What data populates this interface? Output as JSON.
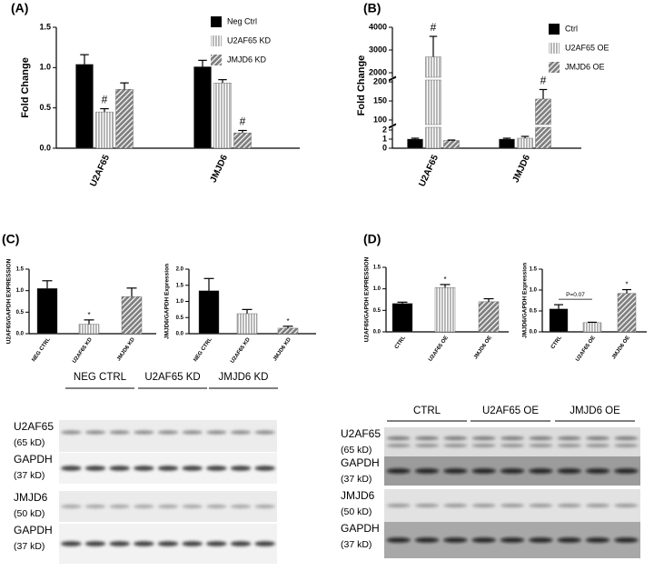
{
  "chart_data": [
    {
      "type": "bar",
      "title": "(A)",
      "y_label": "Fold Change",
      "categories": [
        "U2AF65",
        "JMJD6"
      ],
      "series": [
        {
          "name": "Neg Ctrl",
          "color": "#000000",
          "pattern": "solid",
          "values": [
            1.04,
            1.01
          ],
          "errors": [
            0.12,
            0.08
          ],
          "annotations": [
            null,
            null
          ]
        },
        {
          "name": "U2AF65 KD",
          "color": "#b0b0b0",
          "pattern": "stripes",
          "values": [
            0.45,
            0.81
          ],
          "errors": [
            0.04,
            0.04
          ],
          "annotations": [
            "#",
            null
          ]
        },
        {
          "name": "JMJD6 KD",
          "color": "#7f7f7f",
          "pattern": "hatch",
          "values": [
            0.73,
            0.19
          ],
          "errors": [
            0.08,
            0.03
          ],
          "annotations": [
            null,
            "#"
          ]
        }
      ],
      "ylim": [
        0,
        1.5
      ],
      "yticks": [
        {
          "value": 0,
          "label": "0.0"
        },
        {
          "value": 0.5,
          "label": "0.5"
        },
        {
          "value": 1,
          "label": "1.0"
        },
        {
          "value": 1.5,
          "label": "1.5"
        }
      ]
    },
    {
      "type": "bar",
      "title": "(B)",
      "y_label": "Fold Change",
      "categories": [
        "U2AF65",
        "JMJD6"
      ],
      "series": [
        {
          "name": "Ctrl",
          "color": "#000000",
          "pattern": "solid",
          "values": [
            1,
            1
          ],
          "errors": [
            0.1,
            0.1
          ],
          "annotations": [
            null,
            null
          ]
        },
        {
          "name": "U2AF65 OE",
          "color": "#b0b0b0",
          "pattern": "stripes",
          "values": [
            2700,
            1.1
          ],
          "errors": [
            900,
            0.2
          ],
          "annotations": [
            "#",
            null
          ]
        },
        {
          "name": "JMJD6 OE",
          "color": "#7f7f7f",
          "pattern": "hatch",
          "values": [
            0.85,
            155
          ],
          "errors": [
            0.05,
            25
          ],
          "annotations": [
            null,
            "#"
          ]
        }
      ],
      "y_segments": [
        {
          "ylim": [
            0,
            2.3
          ],
          "yticks": [
            0,
            1,
            2
          ]
        },
        {
          "ylim": [
            88,
            205
          ],
          "yticks": [
            100,
            150,
            200
          ]
        },
        {
          "ylim": [
            1800,
            4000
          ],
          "yticks": [
            2000,
            3000,
            4000
          ]
        }
      ]
    },
    {
      "type": "bar",
      "title": "(C)",
      "y_label": "U2AF65/GAPDH EXPRESSION",
      "categories": [
        "NEG CTRL",
        "U2AF65 KD",
        "JMJD6 KD"
      ],
      "values": [
        1.05,
        0.22,
        0.86
      ],
      "errors": [
        0.18,
        0.1,
        0.2
      ],
      "annotations": [
        null,
        "*",
        null
      ],
      "colors": [
        "#000000",
        "#b0b0b0",
        "#7f7f7f"
      ],
      "patterns": [
        "solid",
        "stripes",
        "hatch"
      ],
      "ylim": [
        0,
        1.5
      ],
      "yticks": [
        {
          "value": 0,
          "label": "0.0"
        },
        {
          "value": 0.5,
          "label": "0.5"
        },
        {
          "value": 1,
          "label": "1.0"
        },
        {
          "value": 1.5,
          "label": "1.5"
        }
      ]
    },
    {
      "type": "bar",
      "y_label": "JMJD6/GAPDH Expression",
      "categories": [
        "NEG CTRL",
        "U2AF65 KD",
        "JMJD6 KD"
      ],
      "values": [
        1.33,
        0.62,
        0.17
      ],
      "errors": [
        0.38,
        0.13,
        0.06
      ],
      "annotations": [
        null,
        null,
        "*"
      ],
      "colors": [
        "#000000",
        "#b0b0b0",
        "#7f7f7f"
      ],
      "patterns": [
        "solid",
        "stripes",
        "hatch"
      ],
      "ylim": [
        0,
        2
      ],
      "yticks": [
        {
          "value": 0,
          "label": "0.0"
        },
        {
          "value": 0.5,
          "label": "0.5"
        },
        {
          "value": 1,
          "label": "1.0"
        },
        {
          "value": 1.5,
          "label": "1.5"
        },
        {
          "value": 2,
          "label": "2.0"
        }
      ]
    },
    {
      "type": "bar",
      "title": "(D)",
      "y_label": "U2AF65/GAPDH EXPRESSION",
      "categories": [
        "CTRL",
        "U2AF65 OE",
        "JMJD6 OE"
      ],
      "values": [
        0.66,
        1.03,
        0.7
      ],
      "errors": [
        0.03,
        0.07,
        0.07
      ],
      "annotations": [
        null,
        "*",
        null
      ],
      "colors": [
        "#000000",
        "#b0b0b0",
        "#7f7f7f"
      ],
      "patterns": [
        "solid",
        "stripes",
        "hatch"
      ],
      "ylim": [
        0,
        1.5
      ],
      "yticks": [
        {
          "value": 0,
          "label": "0.0"
        },
        {
          "value": 0.5,
          "label": "0.5"
        },
        {
          "value": 1,
          "label": "1.0"
        },
        {
          "value": 1.5,
          "label": "1.5"
        }
      ]
    },
    {
      "type": "bar",
      "y_label": "JMJD6/GAPDH Expression",
      "categories": [
        "CTRL",
        "U2AF65 OE",
        "JMJD6 OE"
      ],
      "values": [
        0.55,
        0.22,
        0.92
      ],
      "errors": [
        0.1,
        0.01,
        0.09
      ],
      "annotations": [
        null,
        null,
        "*"
      ],
      "colors": [
        "#000000",
        "#b0b0b0",
        "#7f7f7f"
      ],
      "patterns": [
        "solid",
        "stripes",
        "hatch"
      ],
      "comparison_label": "P=0.07",
      "ylim": [
        0,
        1.5
      ],
      "yticks": [
        {
          "value": 0,
          "label": "0.0"
        },
        {
          "value": 0.5,
          "label": "0.5"
        },
        {
          "value": 1,
          "label": "1.0"
        },
        {
          "value": 1.5,
          "label": "1.5"
        }
      ]
    }
  ],
  "blots": [
    {
      "groups": [
        "NEG CTRL",
        "U2AF65 KD",
        "JMJD6 KD"
      ],
      "rows": [
        {
          "protein": "U2AF65",
          "size": "(65 kD)"
        },
        {
          "protein": "GAPDH",
          "size": "(37 kD)"
        },
        {
          "protein": "JMJD6",
          "size": "(50 kD)"
        },
        {
          "protein": "GAPDH",
          "size": "(37 kD)"
        }
      ]
    },
    {
      "groups": [
        "CTRL",
        "U2AF65 OE",
        "JMJD6 OE"
      ],
      "rows": [
        {
          "protein": "U2AF65",
          "size": "(65 kD)"
        },
        {
          "protein": "GAPDH",
          "size": "(37 kD)"
        },
        {
          "protein": "JMJD6",
          "size": "(50 kD)"
        },
        {
          "protein": "GAPDH",
          "size": "(37 kD)"
        }
      ]
    }
  ]
}
